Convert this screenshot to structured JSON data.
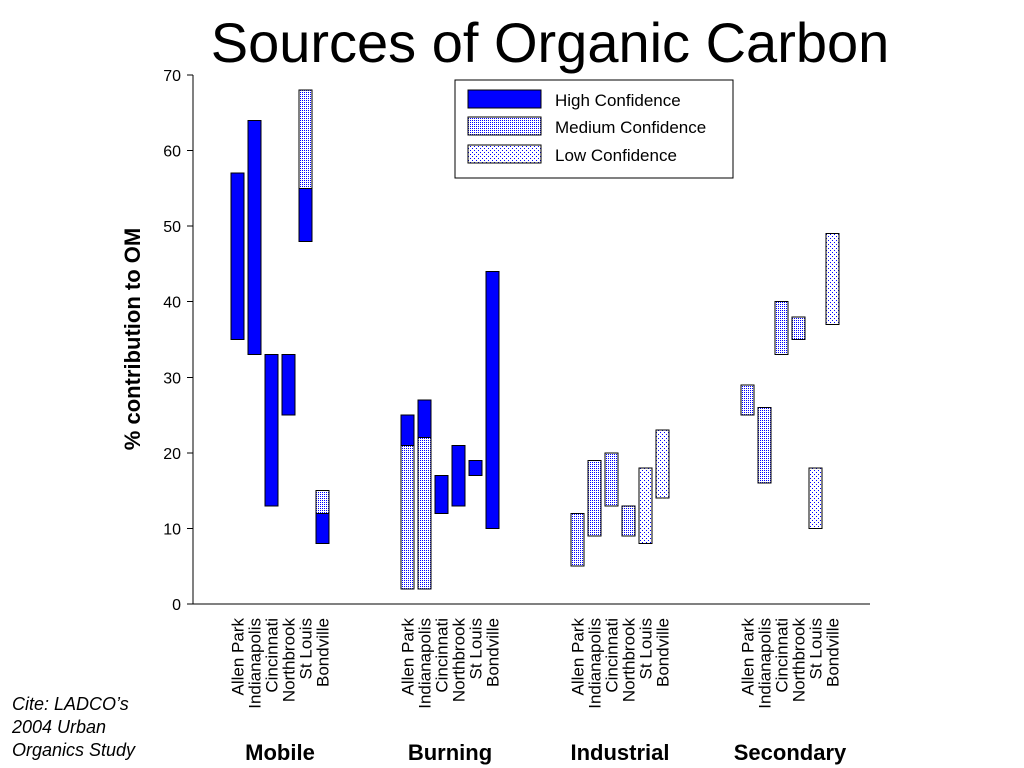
{
  "cite": {
    "line1": "Cite: LADCO’s",
    "line2": "2004 Urban",
    "line3": "Organics Study"
  },
  "colors": {
    "axis": "#000000",
    "background": "#ffffff"
  },
  "chart_data": {
    "type": "bar",
    "title": "Sources of Organic Carbon",
    "xlabel": "",
    "ylabel": "% contribution to OM",
    "ylim": [
      0,
      70
    ],
    "yticks": [
      0,
      10,
      20,
      30,
      40,
      50,
      60,
      70
    ],
    "grid": false,
    "legend_position": "top-right",
    "groups": [
      "Mobile",
      "Burning",
      "Industrial",
      "Secondary"
    ],
    "categories": [
      "Allen Park",
      "Indianapolis",
      "Cincinnati",
      "Northbrook",
      "St Louis",
      "Bondville"
    ],
    "series": [
      {
        "name": "High Confidence",
        "color": "#0000ff",
        "data": [
          [
            [
              35,
              57
            ],
            [
              33,
              64
            ],
            [
              13,
              33
            ],
            [
              25,
              33
            ],
            [
              48,
              55
            ],
            [
              8,
              12
            ]
          ],
          [
            [
              21,
              25
            ],
            [
              22,
              27
            ],
            [
              12,
              17
            ],
            [
              13,
              21
            ],
            [
              17,
              19
            ],
            [
              10,
              44
            ]
          ],
          [
            null,
            null,
            null,
            null,
            null,
            null
          ],
          [
            null,
            null,
            null,
            null,
            null,
            null
          ]
        ]
      },
      {
        "name": "Medium Confidence",
        "color": "#0000ff",
        "data": [
          [
            null,
            null,
            null,
            null,
            [
              55,
              68
            ],
            [
              12,
              15
            ]
          ],
          [
            [
              2,
              21
            ],
            [
              2,
              22
            ],
            null,
            null,
            null,
            null
          ],
          [
            [
              5,
              12
            ],
            [
              9,
              19
            ],
            [
              13,
              20
            ],
            [
              9,
              13
            ],
            null,
            null
          ],
          [
            [
              25,
              29
            ],
            [
              16,
              26
            ],
            [
              33,
              40
            ],
            [
              35,
              38
            ],
            null,
            null
          ]
        ]
      },
      {
        "name": "Low Confidence",
        "color": "#0000ff",
        "data": [
          [
            null,
            null,
            null,
            null,
            null,
            null
          ],
          [
            null,
            null,
            null,
            null,
            null,
            null
          ],
          [
            null,
            null,
            null,
            null,
            [
              8,
              18
            ],
            [
              14,
              23
            ]
          ],
          [
            null,
            null,
            null,
            null,
            [
              10,
              18
            ],
            [
              37,
              49
            ]
          ]
        ]
      }
    ]
  }
}
